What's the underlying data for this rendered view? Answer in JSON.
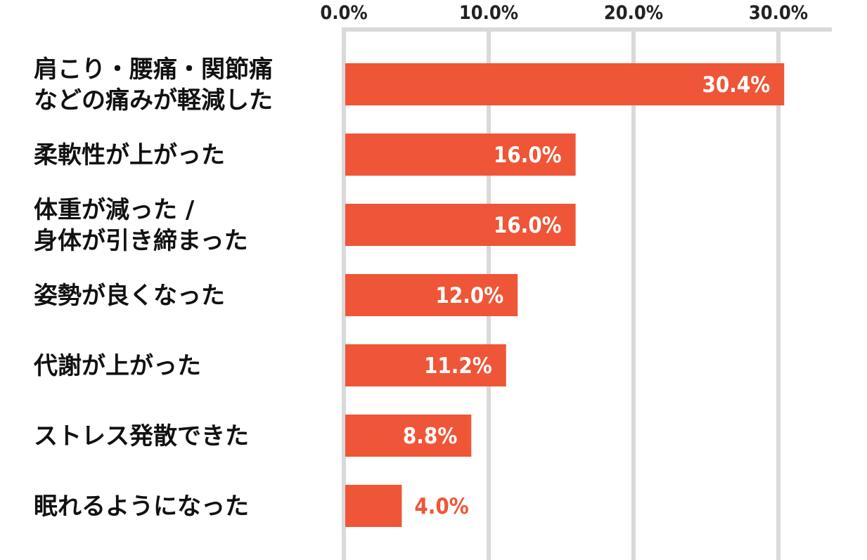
{
  "chart_data": {
    "type": "bar",
    "orientation": "horizontal",
    "categories": [
      [
        "肩こり・腰痛・関節痛",
        "などの痛みが軽減した"
      ],
      [
        "柔軟性が上がった"
      ],
      [
        "体重が減った /",
        "身体が引き締まった"
      ],
      [
        "姿勢が良くなった"
      ],
      [
        "代謝が上がった"
      ],
      [
        "ストレス発散できた"
      ],
      [
        "眠れるようになった"
      ]
    ],
    "values": [
      30.4,
      16.0,
      16.0,
      12.0,
      11.2,
      8.8,
      4.0
    ],
    "value_labels": [
      "30.4%",
      "16.0%",
      "16.0%",
      "12.0%",
      "11.2%",
      "8.8%",
      "4.0%"
    ],
    "x_ticks": [
      0,
      10,
      20,
      30
    ],
    "x_tick_labels": [
      "0.0%",
      "10.0%",
      "20.0%",
      "30.0%"
    ],
    "xlim": [
      0,
      32
    ],
    "axis_position": "top",
    "grid": true,
    "colors": {
      "bar": "#EF5537",
      "grid": "#D9D9D9",
      "label_inside": "#FFFFFF",
      "label_outside": "#EF5537"
    }
  }
}
